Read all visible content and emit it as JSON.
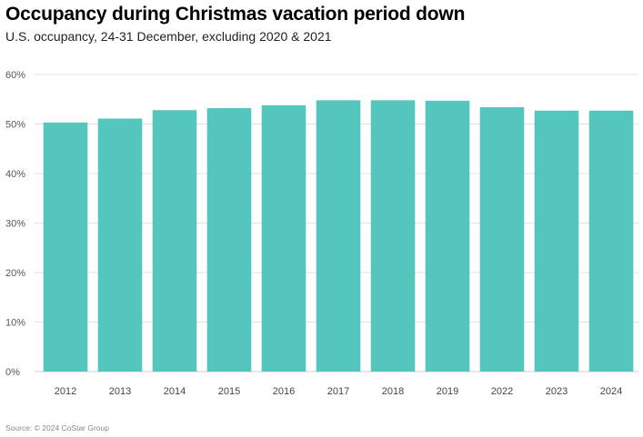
{
  "header": {
    "title": "Occupancy during Christmas vacation period down",
    "subtitle": "U.S. occupancy, 24-31 December, excluding 2020 & 2021"
  },
  "footer": {
    "source": "Source: © 2024 CoStar Group"
  },
  "colors": {
    "bar": "#54C6BE",
    "grid": "#e2e2e2",
    "axis": "#555555"
  },
  "chart_data": {
    "type": "bar",
    "title": "Occupancy during Christmas vacation period down",
    "subtitle": "U.S. occupancy, 24-31 December, excluding 2020 & 2021",
    "categories": [
      "2012",
      "2013",
      "2014",
      "2015",
      "2016",
      "2017",
      "2018",
      "2019",
      "2022",
      "2023",
      "2024"
    ],
    "values": [
      50.3,
      51.1,
      52.8,
      53.2,
      53.8,
      54.8,
      54.8,
      54.7,
      53.4,
      52.7,
      52.7
    ],
    "ylim": [
      0,
      60
    ],
    "yticks": [
      "0%",
      "10%",
      "20%",
      "30%",
      "40%",
      "50%",
      "60%"
    ],
    "ytick_values": [
      0,
      10,
      20,
      30,
      40,
      50,
      60
    ],
    "grid": true,
    "legend": "none"
  }
}
